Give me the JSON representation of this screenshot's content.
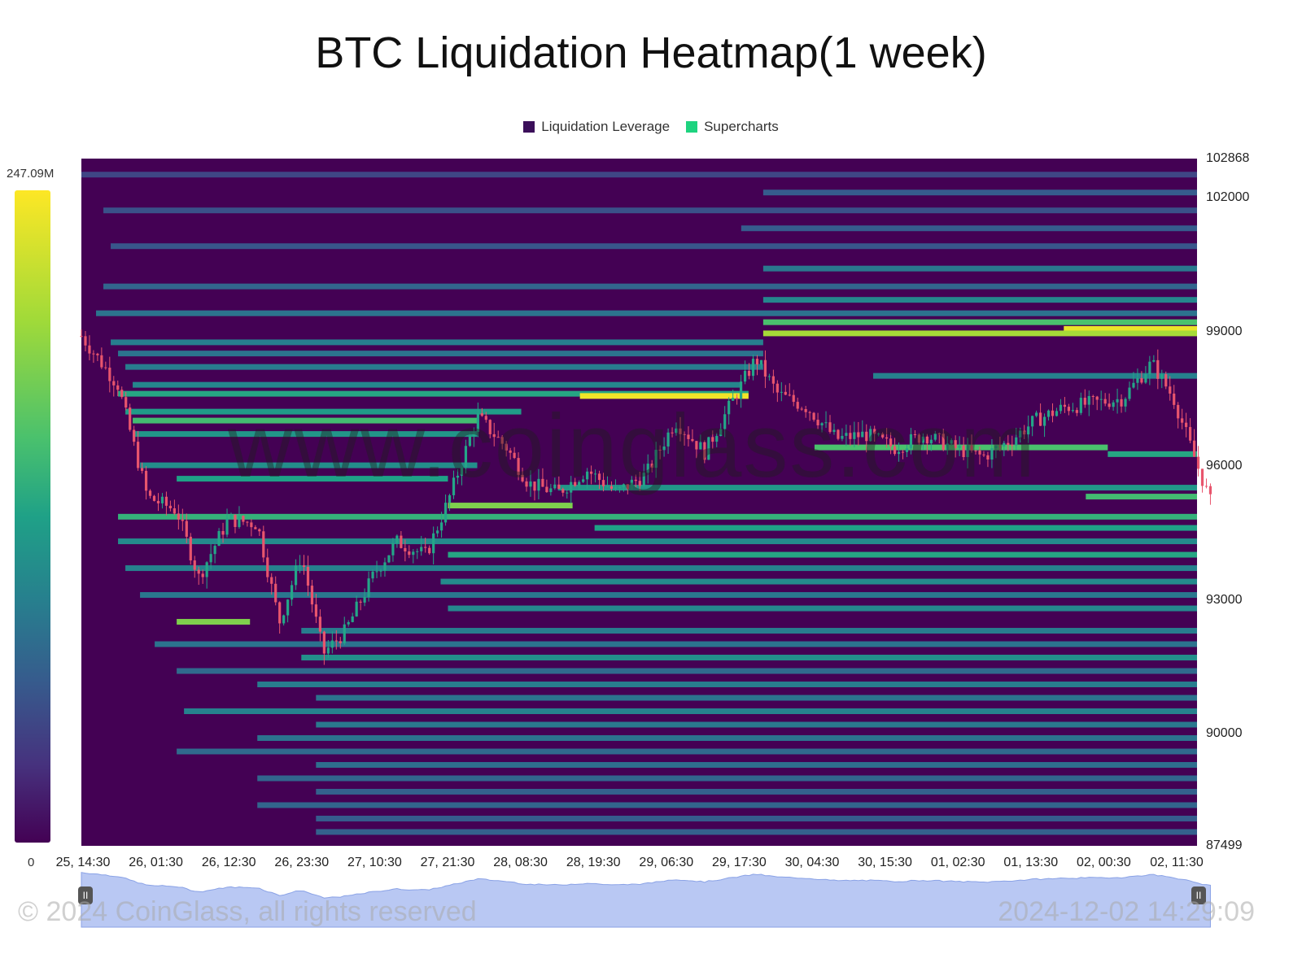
{
  "header": {
    "title": "BTC Liquidation Heatmap(1 week)"
  },
  "legend": [
    {
      "label": "Liquidation Leverage",
      "color": "#3b0f5a"
    },
    {
      "label": "Supercharts",
      "color": "#1ed37f"
    }
  ],
  "colorbar": {
    "max_label": "247.09M",
    "min_label": "0"
  },
  "watermark": "www.coinglass.com",
  "footer": {
    "copyright": "© 2024 CoinGlass, all rights reserved",
    "timestamp": "2024-12-02 14:29:09"
  },
  "navigator": {
    "left_handle": "II",
    "right_handle": "II"
  },
  "colors": {
    "bg": "#440154",
    "mid": "#21918c",
    "high": "#fde725",
    "up": "#24a688",
    "down": "#e8556d"
  },
  "chart_data": {
    "type": "heatmap",
    "title": "BTC Liquidation Heatmap(1 week)",
    "ylim": [
      87499,
      102868
    ],
    "yticks": [
      "102868",
      "102000",
      "99000",
      "96000",
      "93000",
      "90000",
      "87499"
    ],
    "xticks": [
      "25, 14:30",
      "26, 01:30",
      "26, 12:30",
      "26, 23:30",
      "27, 10:30",
      "27, 21:30",
      "28, 08:30",
      "28, 19:30",
      "29, 06:30",
      "29, 17:30",
      "30, 04:30",
      "30, 15:30",
      "01, 02:30",
      "01, 13:30",
      "02, 00:30",
      "02, 11:30"
    ],
    "color_range": [
      0,
      247.09
    ],
    "color_unit": "M",
    "price_path": [
      {
        "t": 0,
        "p": 98900
      },
      {
        "t": 0.5,
        "p": 97800
      },
      {
        "t": 0.9,
        "p": 95300
      },
      {
        "t": 1.3,
        "p": 95000
      },
      {
        "t": 1.6,
        "p": 93500
      },
      {
        "t": 2.0,
        "p": 94800
      },
      {
        "t": 2.4,
        "p": 94700
      },
      {
        "t": 2.7,
        "p": 92500
      },
      {
        "t": 3.0,
        "p": 94000
      },
      {
        "t": 3.3,
        "p": 91800
      },
      {
        "t": 3.6,
        "p": 92300
      },
      {
        "t": 4.0,
        "p": 93600
      },
      {
        "t": 4.3,
        "p": 94300
      },
      {
        "t": 4.7,
        "p": 94000
      },
      {
        "t": 5.0,
        "p": 95200
      },
      {
        "t": 5.4,
        "p": 97100
      },
      {
        "t": 5.8,
        "p": 96400
      },
      {
        "t": 6.1,
        "p": 95600
      },
      {
        "t": 6.5,
        "p": 95400
      },
      {
        "t": 6.9,
        "p": 95900
      },
      {
        "t": 7.3,
        "p": 95400
      },
      {
        "t": 7.7,
        "p": 95800
      },
      {
        "t": 8.1,
        "p": 97000
      },
      {
        "t": 8.5,
        "p": 96300
      },
      {
        "t": 8.9,
        "p": 97500
      },
      {
        "t": 9.2,
        "p": 98400
      },
      {
        "t": 9.5,
        "p": 97600
      },
      {
        "t": 9.9,
        "p": 97300
      },
      {
        "t": 10.3,
        "p": 96600
      },
      {
        "t": 10.7,
        "p": 96700
      },
      {
        "t": 11.1,
        "p": 96400
      },
      {
        "t": 11.5,
        "p": 96700
      },
      {
        "t": 11.9,
        "p": 96400
      },
      {
        "t": 12.3,
        "p": 96200
      },
      {
        "t": 12.7,
        "p": 96600
      },
      {
        "t": 13.0,
        "p": 97000
      },
      {
        "t": 13.4,
        "p": 97300
      },
      {
        "t": 13.8,
        "p": 97400
      },
      {
        "t": 14.2,
        "p": 97500
      },
      {
        "t": 14.6,
        "p": 98300
      },
      {
        "t": 14.9,
        "p": 97500
      },
      {
        "t": 15.2,
        "p": 96100
      },
      {
        "t": 15.4,
        "p": 95200
      }
    ],
    "bands": [
      {
        "price": 102500,
        "from": 0,
        "to": 15.4,
        "v": 0.22
      },
      {
        "price": 102100,
        "from": 9.3,
        "to": 15.4,
        "v": 0.3
      },
      {
        "price": 101700,
        "from": 0.3,
        "to": 15.4,
        "v": 0.26
      },
      {
        "price": 101300,
        "from": 9.0,
        "to": 15.4,
        "v": 0.3
      },
      {
        "price": 100900,
        "from": 0.4,
        "to": 15.4,
        "v": 0.28
      },
      {
        "price": 100400,
        "from": 9.3,
        "to": 15.4,
        "v": 0.42
      },
      {
        "price": 100000,
        "from": 0.3,
        "to": 15.4,
        "v": 0.34
      },
      {
        "price": 99700,
        "from": 9.3,
        "to": 15.4,
        "v": 0.48
      },
      {
        "price": 99400,
        "from": 0.2,
        "to": 15.4,
        "v": 0.4
      },
      {
        "price": 99200,
        "from": 9.3,
        "to": 15.4,
        "v": 0.72
      },
      {
        "price": 99050,
        "from": 13.4,
        "to": 15.4,
        "v": 0.97
      },
      {
        "price": 98950,
        "from": 9.3,
        "to": 15.4,
        "v": 0.86
      },
      {
        "price": 98750,
        "from": 0.4,
        "to": 9.3,
        "v": 0.45
      },
      {
        "price": 98500,
        "from": 0.5,
        "to": 9.3,
        "v": 0.4
      },
      {
        "price": 98200,
        "from": 0.6,
        "to": 9.3,
        "v": 0.44
      },
      {
        "price": 98000,
        "from": 10.8,
        "to": 15.4,
        "v": 0.46
      },
      {
        "price": 97800,
        "from": 0.7,
        "to": 9.0,
        "v": 0.48
      },
      {
        "price": 97600,
        "from": 0.5,
        "to": 9.1,
        "v": 0.62
      },
      {
        "price": 97550,
        "from": 6.8,
        "to": 9.1,
        "v": 0.98
      },
      {
        "price": 97200,
        "from": 0.6,
        "to": 6.0,
        "v": 0.58
      },
      {
        "price": 97000,
        "from": 0.7,
        "to": 5.4,
        "v": 0.7
      },
      {
        "price": 96700,
        "from": 0.7,
        "to": 5.4,
        "v": 0.55
      },
      {
        "price": 96400,
        "from": 10.0,
        "to": 14.0,
        "v": 0.72
      },
      {
        "price": 96250,
        "from": 14.0,
        "to": 15.4,
        "v": 0.62
      },
      {
        "price": 96000,
        "from": 0.8,
        "to": 5.4,
        "v": 0.52
      },
      {
        "price": 95700,
        "from": 1.3,
        "to": 5.0,
        "v": 0.6
      },
      {
        "price": 95500,
        "from": 6.5,
        "to": 15.4,
        "v": 0.55
      },
      {
        "price": 95300,
        "from": 13.7,
        "to": 15.4,
        "v": 0.7
      },
      {
        "price": 95100,
        "from": 5.0,
        "to": 6.7,
        "v": 0.8
      },
      {
        "price": 94850,
        "from": 0.5,
        "to": 15.4,
        "v": 0.66
      },
      {
        "price": 94600,
        "from": 7.0,
        "to": 15.4,
        "v": 0.6
      },
      {
        "price": 94300,
        "from": 0.5,
        "to": 15.4,
        "v": 0.5
      },
      {
        "price": 94000,
        "from": 5.0,
        "to": 15.4,
        "v": 0.62
      },
      {
        "price": 93700,
        "from": 0.6,
        "to": 15.4,
        "v": 0.46
      },
      {
        "price": 93400,
        "from": 4.9,
        "to": 15.4,
        "v": 0.5
      },
      {
        "price": 93100,
        "from": 0.8,
        "to": 15.4,
        "v": 0.42
      },
      {
        "price": 92800,
        "from": 5.0,
        "to": 15.4,
        "v": 0.48
      },
      {
        "price": 92500,
        "from": 1.3,
        "to": 2.3,
        "v": 0.8
      },
      {
        "price": 92300,
        "from": 3.0,
        "to": 15.4,
        "v": 0.44
      },
      {
        "price": 92000,
        "from": 1.0,
        "to": 15.4,
        "v": 0.4
      },
      {
        "price": 91700,
        "from": 3.0,
        "to": 15.4,
        "v": 0.52
      },
      {
        "price": 91400,
        "from": 1.3,
        "to": 15.4,
        "v": 0.36
      },
      {
        "price": 91100,
        "from": 2.4,
        "to": 15.4,
        "v": 0.44
      },
      {
        "price": 90800,
        "from": 3.2,
        "to": 15.4,
        "v": 0.4
      },
      {
        "price": 90500,
        "from": 1.4,
        "to": 15.4,
        "v": 0.46
      },
      {
        "price": 90200,
        "from": 3.2,
        "to": 15.4,
        "v": 0.42
      },
      {
        "price": 89900,
        "from": 2.4,
        "to": 15.4,
        "v": 0.4
      },
      {
        "price": 89600,
        "from": 1.3,
        "to": 15.4,
        "v": 0.36
      },
      {
        "price": 89300,
        "from": 3.2,
        "to": 15.4,
        "v": 0.38
      },
      {
        "price": 89000,
        "from": 2.4,
        "to": 15.4,
        "v": 0.34
      },
      {
        "price": 88700,
        "from": 3.2,
        "to": 15.4,
        "v": 0.32
      },
      {
        "price": 88400,
        "from": 2.4,
        "to": 15.4,
        "v": 0.34
      },
      {
        "price": 88100,
        "from": 3.2,
        "to": 15.4,
        "v": 0.3
      },
      {
        "price": 87800,
        "from": 3.2,
        "to": 15.4,
        "v": 0.32
      }
    ]
  }
}
